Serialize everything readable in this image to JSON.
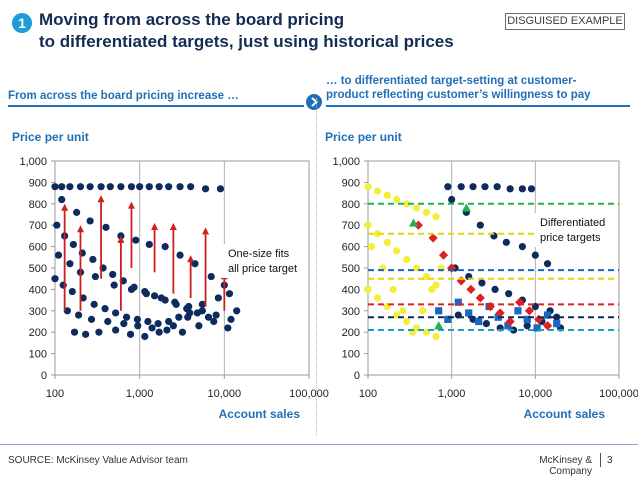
{
  "header": {
    "badge": "1",
    "title_line1": "Moving from across the board pricing",
    "title_line2": "to differentiated targets, just using historical prices",
    "tag": "DISGUISED EXAMPLE"
  },
  "left_panel": {
    "subheading": "From across the board pricing increase …"
  },
  "right_panel": {
    "subheading_line1": "… to differentiated target-setting at customer-",
    "subheading_line2": "product reflecting customer’s willingness to pay"
  },
  "colors": {
    "accent_blue": "#1f70b8",
    "title_navy": "#142c52",
    "badge_blue": "#1f9bd7",
    "dot_navy": "#0d2b5c",
    "arrow_red": "#cc1f1f"
  },
  "icons": {
    "transition": "chevron-right-icon"
  },
  "chart_data": [
    {
      "type": "scatter",
      "title": "",
      "ylabel": "Price per unit",
      "xlabel": "Account sales",
      "x_scale": "log",
      "xlim": [
        100,
        100000
      ],
      "ylim": [
        0,
        1000
      ],
      "x_ticks": [
        "100",
        "1,000",
        "10,000",
        "100,000"
      ],
      "y_ticks": [
        "0",
        "100",
        "200",
        "300",
        "400",
        "500",
        "600",
        "700",
        "800",
        "900",
        "1,000"
      ],
      "grid": "vertical",
      "annotation_line1": "One-size fits",
      "annotation_line2": "all price target",
      "series": [
        {
          "marker": "circle",
          "color": "#0d2b5c",
          "points": [
            [
              100,
              880
            ],
            [
              120,
              880
            ],
            [
              150,
              880
            ],
            [
              200,
              880
            ],
            [
              260,
              880
            ],
            [
              350,
              880
            ],
            [
              450,
              880
            ],
            [
              600,
              880
            ],
            [
              800,
              880
            ],
            [
              1000,
              880
            ],
            [
              1300,
              880
            ],
            [
              1700,
              880
            ],
            [
              2200,
              880
            ],
            [
              3000,
              880
            ],
            [
              4000,
              880
            ],
            [
              6000,
              870
            ],
            [
              9000,
              870
            ],
            [
              120,
              820
            ],
            [
              180,
              760
            ],
            [
              260,
              720
            ],
            [
              400,
              690
            ],
            [
              600,
              650
            ],
            [
              900,
              630
            ],
            [
              1300,
              610
            ],
            [
              2000,
              600
            ],
            [
              3000,
              560
            ],
            [
              4500,
              520
            ],
            [
              7000,
              460
            ],
            [
              10000,
              420
            ],
            [
              14000,
              300
            ],
            [
              110,
              560
            ],
            [
              150,
              520
            ],
            [
              200,
              480
            ],
            [
              300,
              460
            ],
            [
              500,
              420
            ],
            [
              800,
              400
            ],
            [
              1200,
              380
            ],
            [
              1800,
              360
            ],
            [
              2600,
              340
            ],
            [
              3800,
              320
            ],
            [
              5500,
              300
            ],
            [
              8000,
              280
            ],
            [
              12000,
              260
            ],
            [
              140,
              300
            ],
            [
              190,
              280
            ],
            [
              270,
              260
            ],
            [
              420,
              250
            ],
            [
              650,
              240
            ],
            [
              950,
              230
            ],
            [
              1400,
              220
            ],
            [
              2100,
              210
            ],
            [
              3200,
              200
            ],
            [
              5000,
              230
            ],
            [
              7500,
              250
            ],
            [
              11000,
              220
            ],
            [
              170,
              200
            ],
            [
              230,
              190
            ],
            [
              330,
              200
            ],
            [
              520,
              210
            ],
            [
              780,
              190
            ],
            [
              1150,
              180
            ],
            [
              1700,
              200
            ],
            [
              2500,
              230
            ],
            [
              3700,
              270
            ],
            [
              5500,
              330
            ],
            [
              8500,
              360
            ],
            [
              11500,
              380
            ],
            [
              105,
              700
            ],
            [
              130,
              650
            ],
            [
              165,
              610
            ],
            [
              210,
              570
            ],
            [
              280,
              540
            ],
            [
              370,
              500
            ],
            [
              480,
              470
            ],
            [
              640,
              440
            ],
            [
              860,
              410
            ],
            [
              1150,
              390
            ],
            [
              1500,
              370
            ],
            [
              2000,
              350
            ],
            [
              2700,
              330
            ],
            [
              3600,
              310
            ],
            [
              4800,
              290
            ],
            [
              6500,
              270
            ],
            [
              100,
              450
            ],
            [
              125,
              420
            ],
            [
              160,
              390
            ],
            [
              215,
              360
            ],
            [
              290,
              330
            ],
            [
              390,
              310
            ],
            [
              520,
              290
            ],
            [
              700,
              270
            ],
            [
              940,
              260
            ],
            [
              1250,
              250
            ],
            [
              1650,
              240
            ],
            [
              2200,
              250
            ],
            [
              2900,
              270
            ],
            [
              3900,
              290
            ]
          ]
        }
      ],
      "arrows": [
        {
          "x": 130,
          "from": 300,
          "to": 800
        },
        {
          "x": 200,
          "from": 300,
          "to": 700
        },
        {
          "x": 350,
          "from": 450,
          "to": 840
        },
        {
          "x": 600,
          "from": 300,
          "to": 650
        },
        {
          "x": 800,
          "from": 500,
          "to": 810
        },
        {
          "x": 1500,
          "from": 480,
          "to": 710
        },
        {
          "x": 2500,
          "from": 380,
          "to": 710
        },
        {
          "x": 4000,
          "from": 360,
          "to": 560
        },
        {
          "x": 6000,
          "from": 320,
          "to": 690
        },
        {
          "x": 10000,
          "from": 300,
          "to": 480
        }
      ]
    },
    {
      "type": "scatter",
      "title": "",
      "ylabel": "Price per unit",
      "xlabel": "Account sales",
      "x_scale": "log",
      "xlim": [
        100,
        100000
      ],
      "ylim": [
        0,
        1000
      ],
      "x_ticks": [
        "100",
        "1,000",
        "10,000",
        "100,000"
      ],
      "y_ticks": [
        "0",
        "100",
        "200",
        "300",
        "400",
        "500",
        "600",
        "700",
        "800",
        "900",
        "1,000"
      ],
      "grid": "vertical",
      "annotation_line1": "Differentiated",
      "annotation_line2": "price targets",
      "series": [
        {
          "marker": "circle",
          "color": "#0d2b5c",
          "points": [
            [
              900,
              880
            ],
            [
              1300,
              880
            ],
            [
              1800,
              880
            ],
            [
              2500,
              880
            ],
            [
              3500,
              880
            ],
            [
              5000,
              870
            ],
            [
              7000,
              870
            ],
            [
              9000,
              870
            ],
            [
              1000,
              820
            ],
            [
              1500,
              760
            ],
            [
              2200,
              700
            ],
            [
              3200,
              650
            ],
            [
              4500,
              620
            ],
            [
              7000,
              600
            ],
            [
              10000,
              560
            ],
            [
              14000,
              520
            ],
            [
              1100,
              500
            ],
            [
              1600,
              460
            ],
            [
              2300,
              430
            ],
            [
              3300,
              400
            ],
            [
              4800,
              380
            ],
            [
              7000,
              350
            ],
            [
              10000,
              320
            ],
            [
              15000,
              300
            ],
            [
              1200,
              280
            ],
            [
              1800,
              260
            ],
            [
              2600,
              240
            ],
            [
              3800,
              220
            ],
            [
              5500,
              210
            ],
            [
              8000,
              230
            ],
            [
              12000,
              250
            ],
            [
              18000,
              270
            ],
            [
              20000,
              220
            ]
          ]
        },
        {
          "marker": "square",
          "color": "#1a66c2",
          "points": [
            [
              700,
              300
            ],
            [
              900,
              260
            ],
            [
              1200,
              340
            ],
            [
              1600,
              290
            ],
            [
              2100,
              250
            ],
            [
              2800,
              320
            ],
            [
              3600,
              270
            ],
            [
              4700,
              230
            ],
            [
              6200,
              300
            ],
            [
              8000,
              260
            ],
            [
              10500,
              220
            ],
            [
              14000,
              280
            ],
            [
              18000,
              240
            ]
          ]
        },
        {
          "marker": "diamond",
          "color": "#e02020",
          "points": [
            [
              400,
              700
            ],
            [
              600,
              640
            ],
            [
              800,
              560
            ],
            [
              1000,
              500
            ],
            [
              1300,
              440
            ],
            [
              1700,
              400
            ],
            [
              2200,
              360
            ],
            [
              2900,
              320
            ],
            [
              3800,
              290
            ],
            [
              5000,
              250
            ],
            [
              6500,
              340
            ],
            [
              8500,
              300
            ],
            [
              11000,
              260
            ],
            [
              14000,
              230
            ]
          ]
        },
        {
          "marker": "circle",
          "color": "#f2ee3a",
          "points": [
            [
              100,
              880
            ],
            [
              130,
              860
            ],
            [
              170,
              840
            ],
            [
              220,
              820
            ],
            [
              290,
              800
            ],
            [
              380,
              780
            ],
            [
              500,
              760
            ],
            [
              650,
              740
            ],
            [
              100,
              700
            ],
            [
              130,
              660
            ],
            [
              170,
              620
            ],
            [
              220,
              580
            ],
            [
              290,
              540
            ],
            [
              380,
              500
            ],
            [
              500,
              460
            ],
            [
              650,
              420
            ],
            [
              100,
              400
            ],
            [
              130,
              360
            ],
            [
              170,
              320
            ],
            [
              220,
              280
            ],
            [
              290,
              250
            ],
            [
              380,
              220
            ],
            [
              500,
              200
            ],
            [
              650,
              180
            ],
            [
              110,
              600
            ],
            [
              150,
              500
            ],
            [
              200,
              400
            ],
            [
              260,
              300
            ],
            [
              340,
              200
            ],
            [
              450,
              300
            ],
            [
              580,
              400
            ],
            [
              750,
              500
            ]
          ]
        },
        {
          "marker": "triangle",
          "color": "#22b14c",
          "points": [
            [
              350,
              710
            ],
            [
              700,
              230
            ],
            [
              1500,
              780
            ]
          ]
        }
      ],
      "target_lines": [
        {
          "y": 800,
          "color": "#22b14c"
        },
        {
          "y": 660,
          "color": "#e6d40a"
        },
        {
          "y": 490,
          "color": "#1a66c2"
        },
        {
          "y": 450,
          "color": "#e6d40a"
        },
        {
          "y": 330,
          "color": "#e02020"
        },
        {
          "y": 270,
          "color": "#0d2b5c"
        },
        {
          "y": 210,
          "color": "#1a9fc5"
        }
      ]
    }
  ],
  "footer": {
    "source": "SOURCE: McKinsey Value Advisor team",
    "company": "McKinsey & Company",
    "page": "3"
  }
}
